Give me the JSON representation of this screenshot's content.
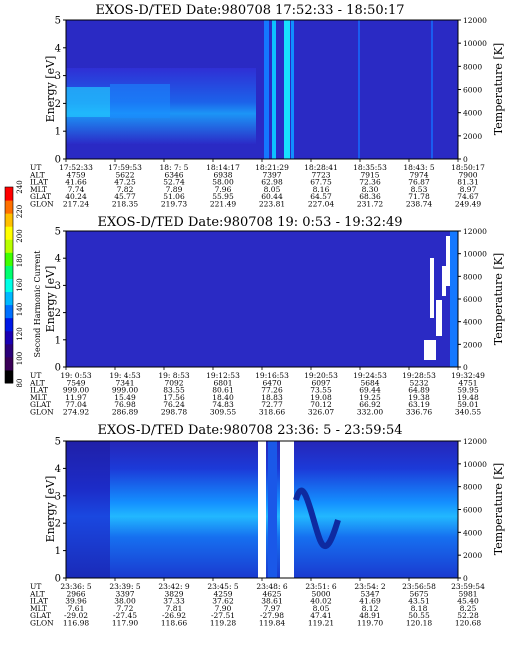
{
  "chart_data": {
    "type": "heatmap",
    "colorbar": {
      "label": "Second Harmonic Current",
      "ticks": [
        "80",
        "100",
        "120",
        "140",
        "160",
        "180",
        "200",
        "220",
        "240"
      ],
      "colors": [
        "#000000",
        "#3a0057",
        "#2b007a",
        "#1a00b4",
        "#0018e6",
        "#0070ff",
        "#00b8ff",
        "#00ffe6",
        "#00ff70",
        "#40ff00",
        "#b8ff00",
        "#ffff00",
        "#ffc000",
        "#ff7000",
        "#ff0000"
      ]
    },
    "panels": [
      {
        "title": "EXOS-D/TED  Date:980708  17:52:33 - 18:50:17",
        "ylabel": "Energy [eV]",
        "y2label": "Temperature [K]",
        "ylim": [
          0,
          5
        ],
        "y2lim": [
          0,
          12000
        ],
        "yticks": [
          "0",
          "1",
          "2",
          "3",
          "4",
          "5"
        ],
        "y2ticks": [
          "0",
          "2000",
          "4000",
          "6000",
          "8000",
          "10000",
          "12000"
        ],
        "row_labels": [
          "UT",
          "ALT",
          "ILAT",
          "MLT",
          "GLAT",
          "GLON"
        ],
        "columns": [
          [
            "17:52:33",
            "4759",
            "41.66",
            "7.74",
            "40.24",
            "217.24"
          ],
          [
            "17:59:53",
            "5622",
            "47.25",
            "7.82",
            "45.77",
            "218.35"
          ],
          [
            "18: 7: 5",
            "6346",
            "52.74",
            "7.89",
            "51.06",
            "219.73"
          ],
          [
            "18:14:17",
            "6938",
            "58.00",
            "7.96",
            "55.95",
            "221.49"
          ],
          [
            "18:21:29",
            "7397",
            "62.98",
            "8.05",
            "60.44",
            "223.81"
          ],
          [
            "18:28:41",
            "7723",
            "67.75",
            "8.16",
            "64.57",
            "227.04"
          ],
          [
            "18:35:53",
            "7915",
            "72.36",
            "8.30",
            "68.36",
            "231.72"
          ],
          [
            "18:43: 5",
            "7974",
            "76.87",
            "8.53",
            "71.78",
            "238.74"
          ],
          [
            "18:50:17",
            "7900",
            "81.31",
            "8.97",
            "74.67",
            "249.49"
          ]
        ]
      },
      {
        "title": "EXOS-D/TED  Date:980708  19: 0:53 - 19:32:49",
        "ylabel": "Energy [eV]",
        "y2label": "Temperature [K]",
        "ylim": [
          0,
          5
        ],
        "y2lim": [
          0,
          12000
        ],
        "yticks": [
          "0",
          "1",
          "2",
          "3",
          "4",
          "5"
        ],
        "y2ticks": [
          "0",
          "2000",
          "4000",
          "6000",
          "8000",
          "10000",
          "12000"
        ],
        "row_labels": [
          "UT",
          "ALT",
          "ILAT",
          "MLT",
          "GLAT",
          "GLON"
        ],
        "columns": [
          [
            "19: 0:53",
            "7549",
            "999.00",
            "11.97",
            "77.04",
            "274.92"
          ],
          [
            "19: 4:53",
            "7341",
            "999.00",
            "15.49",
            "76.98",
            "286.89"
          ],
          [
            "19: 8:53",
            "7092",
            "83.55",
            "17.56",
            "76.24",
            "298.78"
          ],
          [
            "19:12:53",
            "6801",
            "80.61",
            "18.40",
            "74.83",
            "309.55"
          ],
          [
            "19:16:53",
            "6470",
            "77.26",
            "18.83",
            "72.77",
            "318.66"
          ],
          [
            "19:20:53",
            "6097",
            "73.55",
            "19.08",
            "70.12",
            "326.07"
          ],
          [
            "19:24:53",
            "5684",
            "69.44",
            "19.25",
            "66.92",
            "332.00"
          ],
          [
            "19:28:53",
            "5232",
            "64.89",
            "19.38",
            "63.19",
            "336.76"
          ],
          [
            "19:32:49",
            "4751",
            "59.95",
            "19.48",
            "59.01",
            "340.55"
          ]
        ]
      },
      {
        "title": "EXOS-D/TED  Date:980708  23:36: 5 - 23:59:54",
        "ylabel": "Energy [eV]",
        "y2label": "Temperature [K]",
        "ylim": [
          0,
          5
        ],
        "y2lim": [
          0,
          12000
        ],
        "yticks": [
          "0",
          "1",
          "2",
          "3",
          "4",
          "5"
        ],
        "y2ticks": [
          "0",
          "2000",
          "4000",
          "6000",
          "8000",
          "10000",
          "12000"
        ],
        "row_labels": [
          "UT",
          "ALT",
          "ILAT",
          "MLT",
          "GLAT",
          "GLON"
        ],
        "columns": [
          [
            "23:36: 5",
            "2966",
            "39.96",
            "7.61",
            "-29.02",
            "116.98"
          ],
          [
            "23:39: 5",
            "3397",
            "38.00",
            "7.72",
            "-27.45",
            "117.90"
          ],
          [
            "23:42: 9",
            "3829",
            "37.33",
            "7.81",
            "-26.92",
            "118.66"
          ],
          [
            "23:45: 5",
            "4259",
            "37.62",
            "7.90",
            "-27.51",
            "119.28"
          ],
          [
            "23:48: 6",
            "4625",
            "38.61",
            "7.97",
            "-27.98",
            "119.84"
          ],
          [
            "23:51: 6",
            "5000",
            "40.02",
            "8.05",
            "47.41",
            "119.21"
          ],
          [
            "23:54: 2",
            "5347",
            "41.69",
            "8.12",
            "48.91",
            "119.70"
          ],
          [
            "23:56:58",
            "5675",
            "43.51",
            "8.18",
            "50.55",
            "120.18"
          ],
          [
            "23:59:54",
            "5981",
            "45.40",
            "8.25",
            "52.28",
            "120.68"
          ]
        ]
      }
    ]
  }
}
